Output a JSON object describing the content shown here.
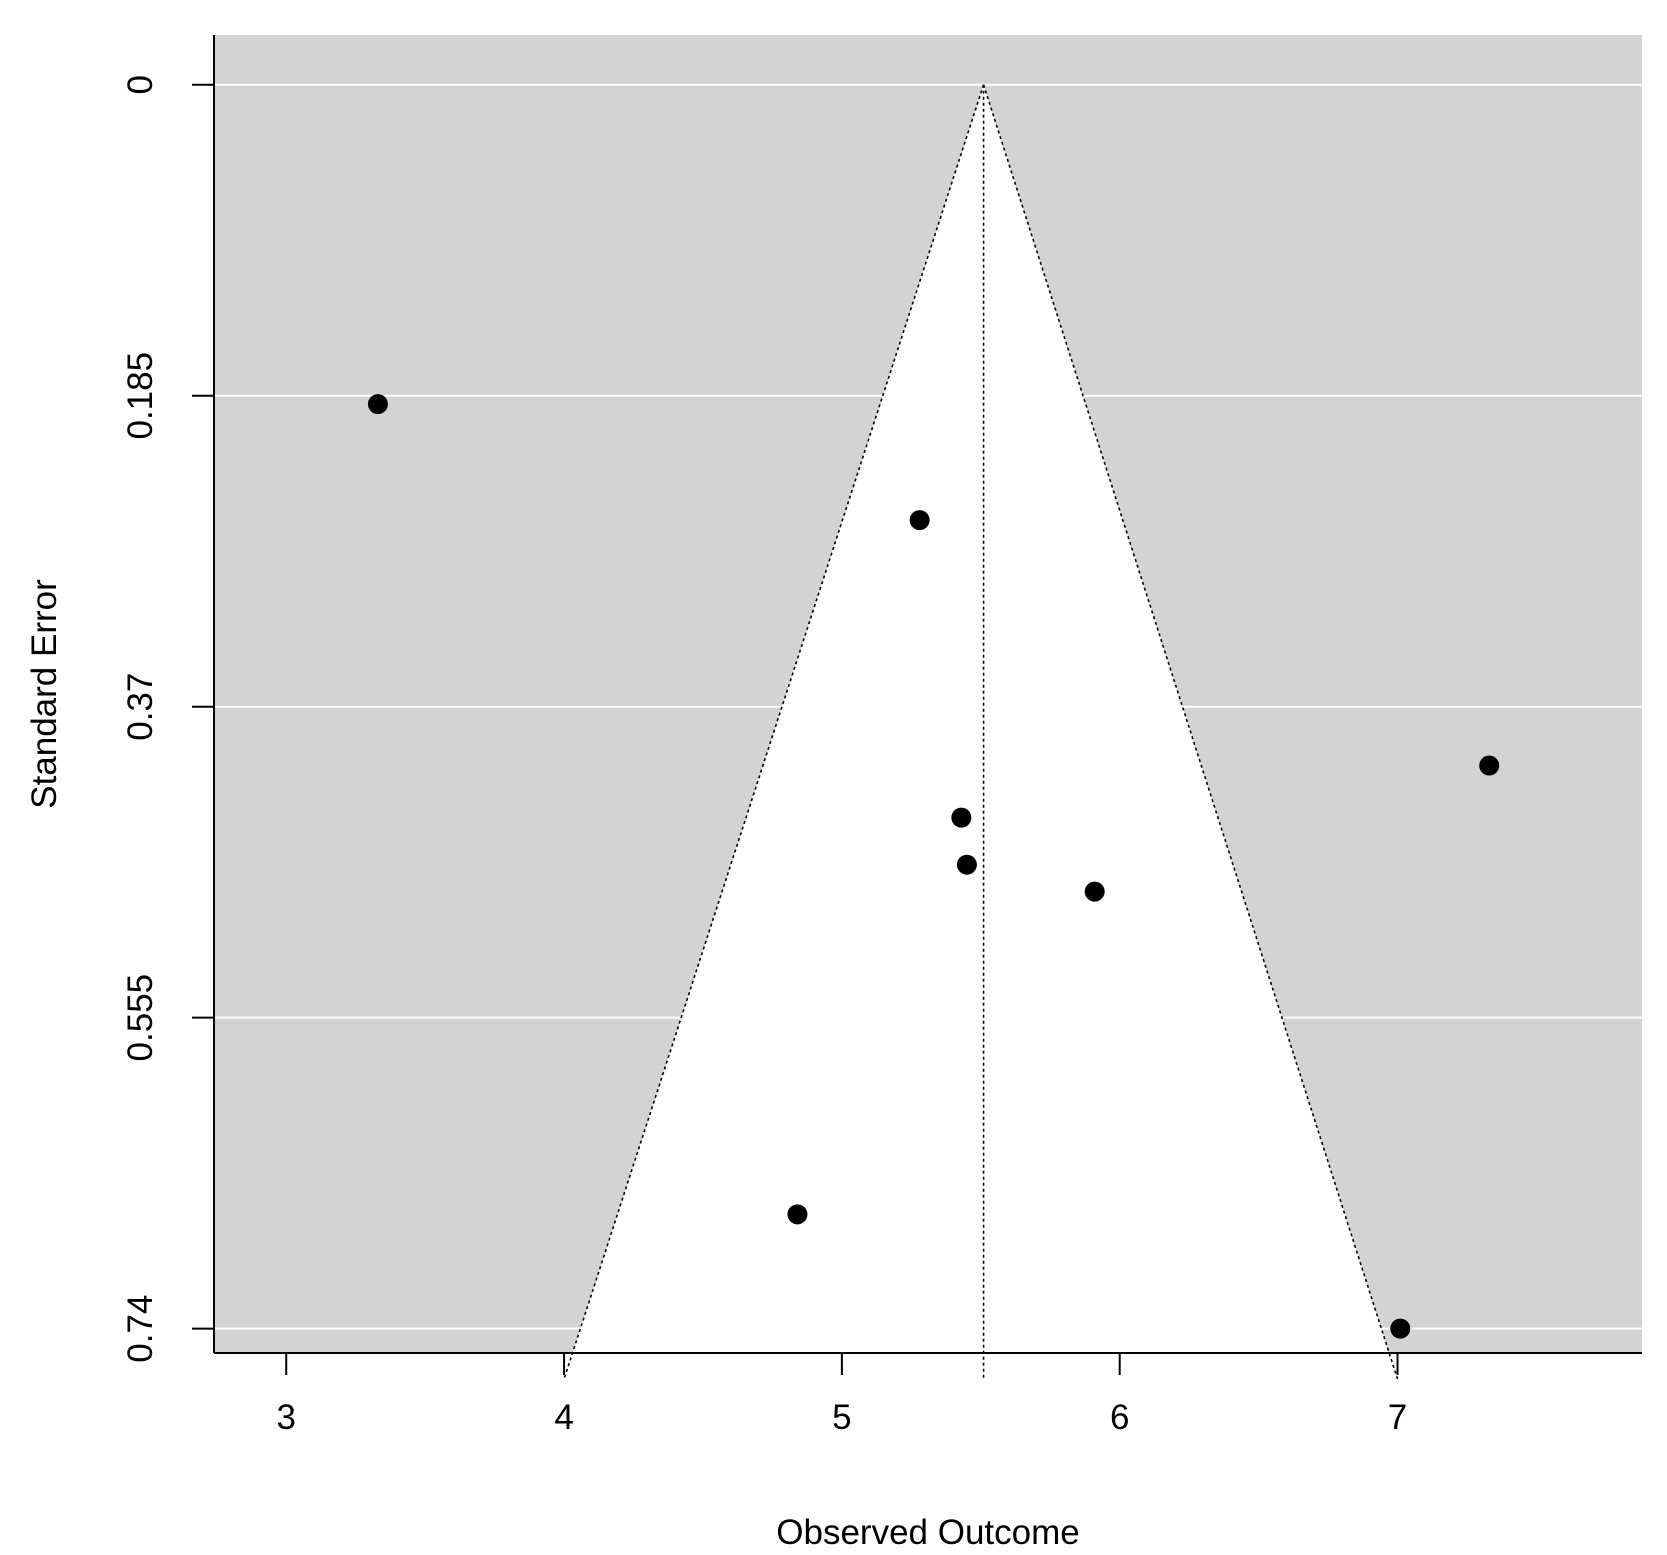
{
  "chart_data": {
    "type": "scatter",
    "subtype": "funnel",
    "xlabel": "Observed Outcome",
    "ylabel": "Standard Error",
    "xlim": [
      2.74,
      7.88
    ],
    "ylim": [
      0.7545,
      -0.0296
    ],
    "y_reversed": true,
    "x_ticks": [
      3,
      4,
      5,
      6,
      7
    ],
    "x_tick_labels": [
      "3",
      "4",
      "5",
      "6",
      "7"
    ],
    "y_ticks": [
      0,
      0.185,
      0.37,
      0.555,
      0.74
    ],
    "y_tick_labels": [
      "0",
      "0.185",
      "0.37",
      "0.555",
      "0.74"
    ],
    "grid": "horizontal",
    "background_color": "#d3d3d3",
    "funnel_color": "#ffffff",
    "point_color": "#000000",
    "funnel": {
      "center": 5.51,
      "se_max": 0.77,
      "left_at_max": 4.0,
      "right_at_max": 7.0
    },
    "points": [
      {
        "x": 3.33,
        "y": 0.19
      },
      {
        "x": 5.28,
        "y": 0.259
      },
      {
        "x": 7.33,
        "y": 0.405
      },
      {
        "x": 5.43,
        "y": 0.436
      },
      {
        "x": 5.45,
        "y": 0.464
      },
      {
        "x": 5.91,
        "y": 0.48
      },
      {
        "x": 4.84,
        "y": 0.672
      },
      {
        "x": 7.01,
        "y": 0.74
      }
    ]
  }
}
